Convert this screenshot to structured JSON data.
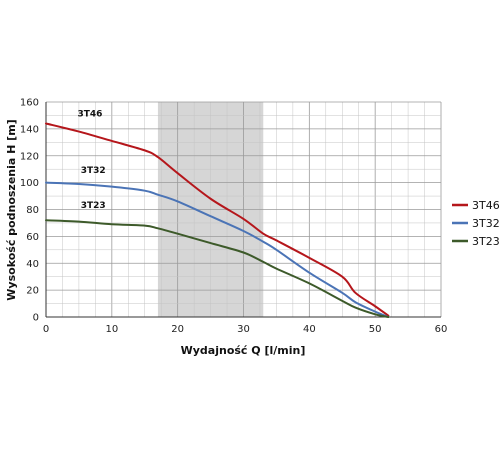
{
  "chart_data": {
    "type": "line",
    "xlabel": "Wydajność Q [l/min]",
    "ylabel": "Wysokość podnoszenia H [m]",
    "xlim": [
      0,
      60
    ],
    "ylim": [
      0,
      160
    ],
    "xticks": [
      "0",
      "10",
      "20",
      "30",
      "40",
      "50",
      "60"
    ],
    "yticks": [
      "0",
      "20",
      "40",
      "60",
      "80",
      "100",
      "120",
      "140",
      "160"
    ],
    "grid": true,
    "legend_position": "right",
    "highlight_band": {
      "x_start": 17,
      "x_end": 33,
      "color": "#d6d6d6"
    },
    "series": [
      {
        "name": "3T46",
        "color": "#b5161b",
        "label_at": {
          "x": 2.5,
          "y": 144
        },
        "points": [
          [
            0,
            144
          ],
          [
            5,
            138
          ],
          [
            10,
            131
          ],
          [
            15,
            124
          ],
          [
            17,
            119
          ],
          [
            20,
            107
          ],
          [
            25,
            88
          ],
          [
            30,
            73
          ],
          [
            33,
            62
          ],
          [
            35,
            57
          ],
          [
            40,
            44
          ],
          [
            45,
            30
          ],
          [
            47,
            18
          ],
          [
            50,
            8
          ],
          [
            52,
            1
          ]
        ]
      },
      {
        "name": "3T32",
        "color": "#4b74b6",
        "label_at": {
          "x": 3,
          "y": 102
        },
        "points": [
          [
            0,
            100
          ],
          [
            5,
            99
          ],
          [
            10,
            97
          ],
          [
            15,
            94
          ],
          [
            17,
            91
          ],
          [
            20,
            86
          ],
          [
            25,
            75
          ],
          [
            30,
            64
          ],
          [
            33,
            56
          ],
          [
            35,
            50
          ],
          [
            40,
            33
          ],
          [
            45,
            18
          ],
          [
            47,
            11
          ],
          [
            50,
            4
          ],
          [
            52,
            0
          ]
        ]
      },
      {
        "name": "3T23",
        "color": "#3d5a2a",
        "label_at": {
          "x": 3,
          "y": 76
        },
        "points": [
          [
            0,
            72
          ],
          [
            5,
            71
          ],
          [
            10,
            69
          ],
          [
            15,
            68
          ],
          [
            17,
            66
          ],
          [
            20,
            62
          ],
          [
            25,
            55
          ],
          [
            30,
            48
          ],
          [
            33,
            41
          ],
          [
            35,
            36
          ],
          [
            40,
            25
          ],
          [
            45,
            12
          ],
          [
            47,
            7
          ],
          [
            50,
            2
          ],
          [
            52,
            0
          ]
        ]
      }
    ]
  }
}
